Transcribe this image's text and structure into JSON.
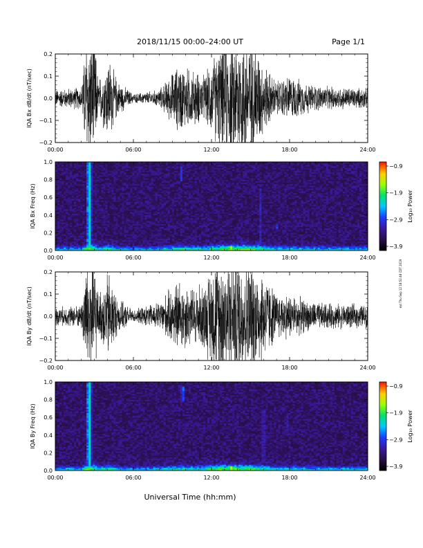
{
  "header": {
    "title": "2018/11/15   00:00–24:00 UT",
    "page_label": "Page 1/1"
  },
  "footer": {
    "xlabel": "Universal Time (hh:mm)"
  },
  "side_note": "ext Thu Sep 12 18:52:48 CDT 2019",
  "colors": {
    "trace": "#000000",
    "colormap": [
      "#000000",
      "#2a0f4a",
      "#3a1aa0",
      "#1e3cff",
      "#00c8ff",
      "#00e070",
      "#9cff00",
      "#ffd000",
      "#ff2000"
    ]
  },
  "chart_data": [
    {
      "type": "line",
      "ylabel": "IQA Bx dB/dt (nT/sec)",
      "xticks": [
        "00:00",
        "06:00",
        "12:00",
        "18:00",
        "24:00"
      ],
      "xlim": [
        0,
        24
      ],
      "ylim": [
        -0.2,
        0.2
      ],
      "yticks": [
        "−0.2",
        "−0.1",
        "0.0",
        "0.1",
        "0.2"
      ],
      "activity_envelope": [
        {
          "t": 0,
          "amp": 0.03
        },
        {
          "t": 2.0,
          "amp": 0.04
        },
        {
          "t": 2.4,
          "amp": 0.22
        },
        {
          "t": 3.0,
          "amp": 0.22
        },
        {
          "t": 3.3,
          "amp": 0.06
        },
        {
          "t": 4.1,
          "amp": 0.15
        },
        {
          "t": 4.8,
          "amp": 0.06
        },
        {
          "t": 6.0,
          "amp": 0.015
        },
        {
          "t": 8.0,
          "amp": 0.03
        },
        {
          "t": 9.5,
          "amp": 0.12
        },
        {
          "t": 10.5,
          "amp": 0.1
        },
        {
          "t": 11.5,
          "amp": 0.08
        },
        {
          "t": 12.2,
          "amp": 0.15
        },
        {
          "t": 13.0,
          "amp": 0.2
        },
        {
          "t": 14.0,
          "amp": 0.22
        },
        {
          "t": 15.2,
          "amp": 0.22
        },
        {
          "t": 16.0,
          "amp": 0.12
        },
        {
          "t": 17.0,
          "amp": 0.06
        },
        {
          "t": 18.0,
          "amp": 0.08
        },
        {
          "t": 19.5,
          "amp": 0.05
        },
        {
          "t": 21.0,
          "amp": 0.04
        },
        {
          "t": 24.0,
          "amp": 0.035
        }
      ]
    },
    {
      "type": "heatmap",
      "ylabel": "IQA Bx Freq (Hz)",
      "xticks": [
        "00:00",
        "06:00",
        "12:00",
        "18:00",
        "24:00"
      ],
      "xlim": [
        0,
        24
      ],
      "ylim": [
        0,
        1.0
      ],
      "yticks": [
        "0.0",
        "0.2",
        "0.4",
        "0.6",
        "0.8",
        "1.0"
      ],
      "colorbar": {
        "label": "Log₁₀ Power",
        "range": [
          -3.9,
          -0.9
        ],
        "ticks": [
          "−0.9",
          "−1.9",
          "−2.9",
          "−3.9"
        ]
      },
      "features": [
        {
          "t": 2.6,
          "f0": 0.0,
          "f1": 1.0,
          "power": -1.9
        },
        {
          "t": 9.7,
          "f0": 0.78,
          "f1": 0.95,
          "power": -2.6
        },
        {
          "t": 13.5,
          "f0": 0.0,
          "f1": 0.05,
          "power": -1.2
        },
        {
          "t": 15.8,
          "f0": 0.1,
          "f1": 0.7,
          "power": -2.7
        },
        {
          "t": 17.0,
          "f0": 0.25,
          "f1": 0.3,
          "power": -2.5
        }
      ]
    },
    {
      "type": "line",
      "ylabel": "IQA By dB/dt (nT/sec)",
      "xticks": [
        "00:00",
        "06:00",
        "12:00",
        "18:00",
        "24:00"
      ],
      "xlim": [
        0,
        24
      ],
      "ylim": [
        -0.2,
        0.2
      ],
      "yticks": [
        "−0.2",
        "−0.1",
        "0.0",
        "0.1",
        "0.2"
      ],
      "activity_envelope": [
        {
          "t": 0,
          "amp": 0.03
        },
        {
          "t": 2.0,
          "amp": 0.04
        },
        {
          "t": 2.4,
          "amp": 0.22
        },
        {
          "t": 3.0,
          "amp": 0.22
        },
        {
          "t": 3.3,
          "amp": 0.07
        },
        {
          "t": 4.1,
          "amp": 0.16
        },
        {
          "t": 4.8,
          "amp": 0.06
        },
        {
          "t": 6.0,
          "amp": 0.02
        },
        {
          "t": 8.0,
          "amp": 0.05
        },
        {
          "t": 9.5,
          "amp": 0.13
        },
        {
          "t": 10.5,
          "amp": 0.1
        },
        {
          "t": 11.5,
          "amp": 0.12
        },
        {
          "t": 12.2,
          "amp": 0.2
        },
        {
          "t": 13.0,
          "amp": 0.22
        },
        {
          "t": 14.0,
          "amp": 0.22
        },
        {
          "t": 15.2,
          "amp": 0.2
        },
        {
          "t": 16.0,
          "amp": 0.16
        },
        {
          "t": 17.0,
          "amp": 0.08
        },
        {
          "t": 18.0,
          "amp": 0.08
        },
        {
          "t": 19.5,
          "amp": 0.05
        },
        {
          "t": 21.0,
          "amp": 0.045
        },
        {
          "t": 24.0,
          "amp": 0.04
        }
      ]
    },
    {
      "type": "heatmap",
      "ylabel": "IQA By Freq (Hz)",
      "xticks": [
        "00:00",
        "06:00",
        "12:00",
        "18:00",
        "24:00"
      ],
      "xlim": [
        0,
        24
      ],
      "ylim": [
        0,
        1.0
      ],
      "yticks": [
        "0.0",
        "0.2",
        "0.4",
        "0.6",
        "0.8",
        "1.0"
      ],
      "colorbar": {
        "label": "Log₁₀ Power",
        "range": [
          -3.9,
          -0.9
        ],
        "ticks": [
          "−0.9",
          "−1.9",
          "−2.9",
          "−3.9"
        ]
      },
      "features": [
        {
          "t": 2.6,
          "f0": 0.0,
          "f1": 1.0,
          "power": -1.9
        },
        {
          "t": 9.8,
          "f0": 0.78,
          "f1": 0.95,
          "power": -2.4
        },
        {
          "t": 13.5,
          "f0": 0.0,
          "f1": 0.05,
          "power": -1.2
        },
        {
          "t": 16.0,
          "f0": 0.1,
          "f1": 0.7,
          "power": -2.6
        },
        {
          "t": 17.8,
          "f0": 0.4,
          "f1": 0.65,
          "power": -2.8
        }
      ]
    }
  ]
}
